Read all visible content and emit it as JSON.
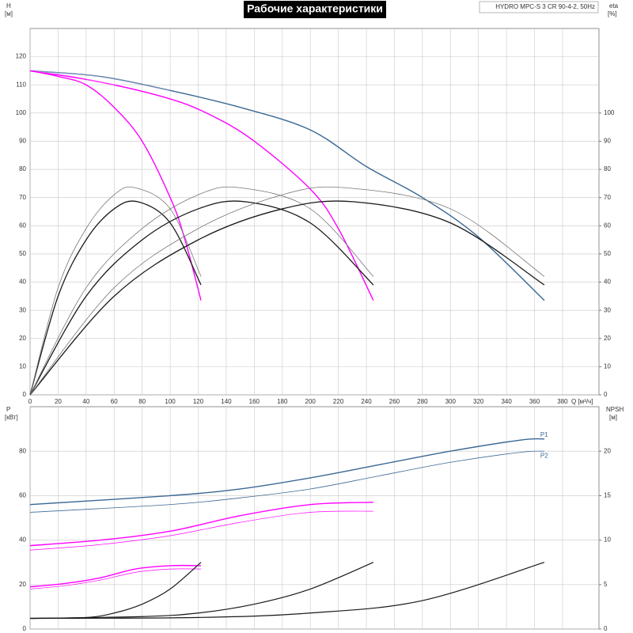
{
  "chart_data": [
    {
      "type": "line",
      "title": "Рабочие характеристики",
      "subtitle": "HYDRO MPC-S 3 CR 90-4-2, 50Hz",
      "y_label": "H",
      "y_unit": "[м]",
      "y2_label": "eta",
      "y2_unit": "[%]",
      "x_label": "Q [м³/ч]",
      "xlim": [
        0,
        406
      ],
      "xticks": [
        0,
        20,
        40,
        60,
        80,
        100,
        120,
        140,
        160,
        180,
        200,
        220,
        240,
        260,
        280,
        300,
        320,
        340,
        360,
        380
      ],
      "ylim": [
        0,
        130
      ],
      "yticks": [
        0,
        10,
        20,
        30,
        40,
        50,
        60,
        70,
        80,
        90,
        100,
        110,
        120
      ],
      "y2lim": [
        0,
        130
      ],
      "y2ticks": [
        0,
        10,
        20,
        30,
        40,
        50,
        60,
        70,
        80,
        90,
        100
      ],
      "grid": true,
      "series": [
        {
          "color": "#3a6894",
          "width": 1.4,
          "x": [
            0,
            50,
            100,
            150,
            200,
            240,
            280,
            320,
            367
          ],
          "values": [
            115,
            113,
            108,
            102,
            94,
            81,
            70,
            56,
            33.5
          ]
        },
        {
          "color": "#8a9cc0",
          "width": 0.7,
          "x": [
            0,
            50,
            100
          ],
          "values": [
            115,
            113,
            108
          ]
        },
        {
          "color": "#ff00ff",
          "width": 1.4,
          "x": [
            0,
            50,
            100,
            130,
            160,
            200,
            220,
            245
          ],
          "values": [
            115,
            111,
            105,
            99,
            90,
            73,
            59,
            33.5
          ]
        },
        {
          "color": "#ff66ff",
          "width": 0.7,
          "x": [
            0,
            30,
            60
          ],
          "values": [
            115,
            113,
            110
          ]
        },
        {
          "color": "#ff00ff",
          "width": 1.4,
          "x": [
            0,
            20,
            40,
            60,
            80,
            100,
            110,
            122
          ],
          "values": [
            115,
            113,
            110,
            102,
            90,
            70,
            56,
            33.5
          ]
        },
        {
          "color": "#1a1a1a",
          "width": 1.3,
          "axis": "y2",
          "x": [
            0,
            20,
            40,
            60,
            77,
            100,
            122
          ],
          "values": [
            0,
            35,
            55,
            66,
            68.5,
            61,
            39
          ]
        },
        {
          "color": "#777777",
          "width": 0.8,
          "axis": "y2",
          "x": [
            0,
            20,
            40,
            60,
            75,
            100,
            122
          ],
          "values": [
            0,
            38,
            59,
            71,
            73.5,
            66,
            42
          ]
        },
        {
          "color": "#1a1a1a",
          "width": 1.3,
          "axis": "y2",
          "x": [
            0,
            40,
            80,
            120,
            154,
            200,
            245
          ],
          "values": [
            0,
            35,
            55,
            66,
            68.5,
            61,
            39
          ]
        },
        {
          "color": "#777777",
          "width": 0.8,
          "axis": "y2",
          "x": [
            0,
            40,
            80,
            120,
            150,
            200,
            245
          ],
          "values": [
            0,
            38,
            59,
            71,
            73.5,
            66,
            42
          ]
        },
        {
          "color": "#1a1a1a",
          "width": 1.3,
          "axis": "y2",
          "x": [
            0,
            60,
            120,
            180,
            231,
            300,
            367
          ],
          "values": [
            0,
            35,
            55,
            66,
            68.5,
            61,
            39
          ]
        },
        {
          "color": "#777777",
          "width": 0.8,
          "axis": "y2",
          "x": [
            0,
            60,
            120,
            180,
            225,
            300,
            367
          ],
          "values": [
            0,
            38,
            59,
            71,
            73.5,
            66,
            42
          ]
        }
      ]
    },
    {
      "type": "line",
      "y_label": "P",
      "y_unit": "[кВт]",
      "y2_label": "NPSH",
      "y2_unit": "[м]",
      "xlim": [
        0,
        406
      ],
      "xticks": [
        0,
        20,
        40,
        60,
        80,
        100,
        120,
        140,
        160,
        180,
        200,
        220,
        240,
        260,
        280,
        300,
        320,
        340,
        360,
        380
      ],
      "ylim": [
        0,
        100
      ],
      "yticks": [
        0,
        20,
        40,
        60,
        80
      ],
      "y2lim": [
        0,
        25
      ],
      "y2ticks": [
        0,
        5,
        10,
        15,
        20
      ],
      "grid": true,
      "series": [
        {
          "name": "P1",
          "color": "#3a6894",
          "width": 1.4,
          "x": [
            0,
            100,
            150,
            200,
            250,
            300,
            350,
            367
          ],
          "values": [
            56,
            60,
            63,
            68,
            74,
            80,
            85,
            85.5
          ]
        },
        {
          "name": "P2",
          "color": "#3a6894",
          "width": 0.8,
          "x": [
            0,
            100,
            150,
            200,
            250,
            300,
            350,
            367
          ],
          "values": [
            52.5,
            56,
            59,
            63,
            69,
            75,
            79.5,
            80
          ]
        },
        {
          "color": "#ff00ff",
          "width": 1.4,
          "x": [
            0,
            50,
            100,
            150,
            200,
            245
          ],
          "values": [
            37.5,
            40,
            44,
            51,
            56,
            57
          ]
        },
        {
          "color": "#ff00ff",
          "width": 0.7,
          "x": [
            0,
            50,
            100,
            150,
            200,
            245
          ],
          "values": [
            35.5,
            38,
            42,
            48,
            52.5,
            53
          ]
        },
        {
          "color": "#ff00ff",
          "width": 1.4,
          "x": [
            0,
            25,
            50,
            75,
            100,
            122
          ],
          "values": [
            19,
            20.5,
            23,
            27,
            28.5,
            28.5
          ]
        },
        {
          "color": "#ff00ff",
          "width": 0.7,
          "x": [
            0,
            25,
            50,
            75,
            100,
            122
          ],
          "values": [
            18,
            19.5,
            22,
            25.5,
            27,
            27
          ]
        },
        {
          "color": "#1a1a1a",
          "width": 1.2,
          "axis": "y2",
          "x": [
            0,
            40,
            60,
            80,
            100,
            122
          ],
          "values": [
            1.2,
            1.3,
            1.8,
            2.8,
            4.5,
            7.5
          ]
        },
        {
          "color": "#1a1a1a",
          "width": 1.2,
          "axis": "y2",
          "x": [
            0,
            80,
            120,
            160,
            200,
            245
          ],
          "values": [
            1.2,
            1.4,
            1.8,
            2.8,
            4.5,
            7.5
          ]
        },
        {
          "color": "#1a1a1a",
          "width": 1.2,
          "axis": "y2",
          "x": [
            0,
            120,
            200,
            280,
            367
          ],
          "values": [
            1.2,
            1.3,
            1.8,
            3.2,
            7.5
          ]
        }
      ]
    }
  ]
}
